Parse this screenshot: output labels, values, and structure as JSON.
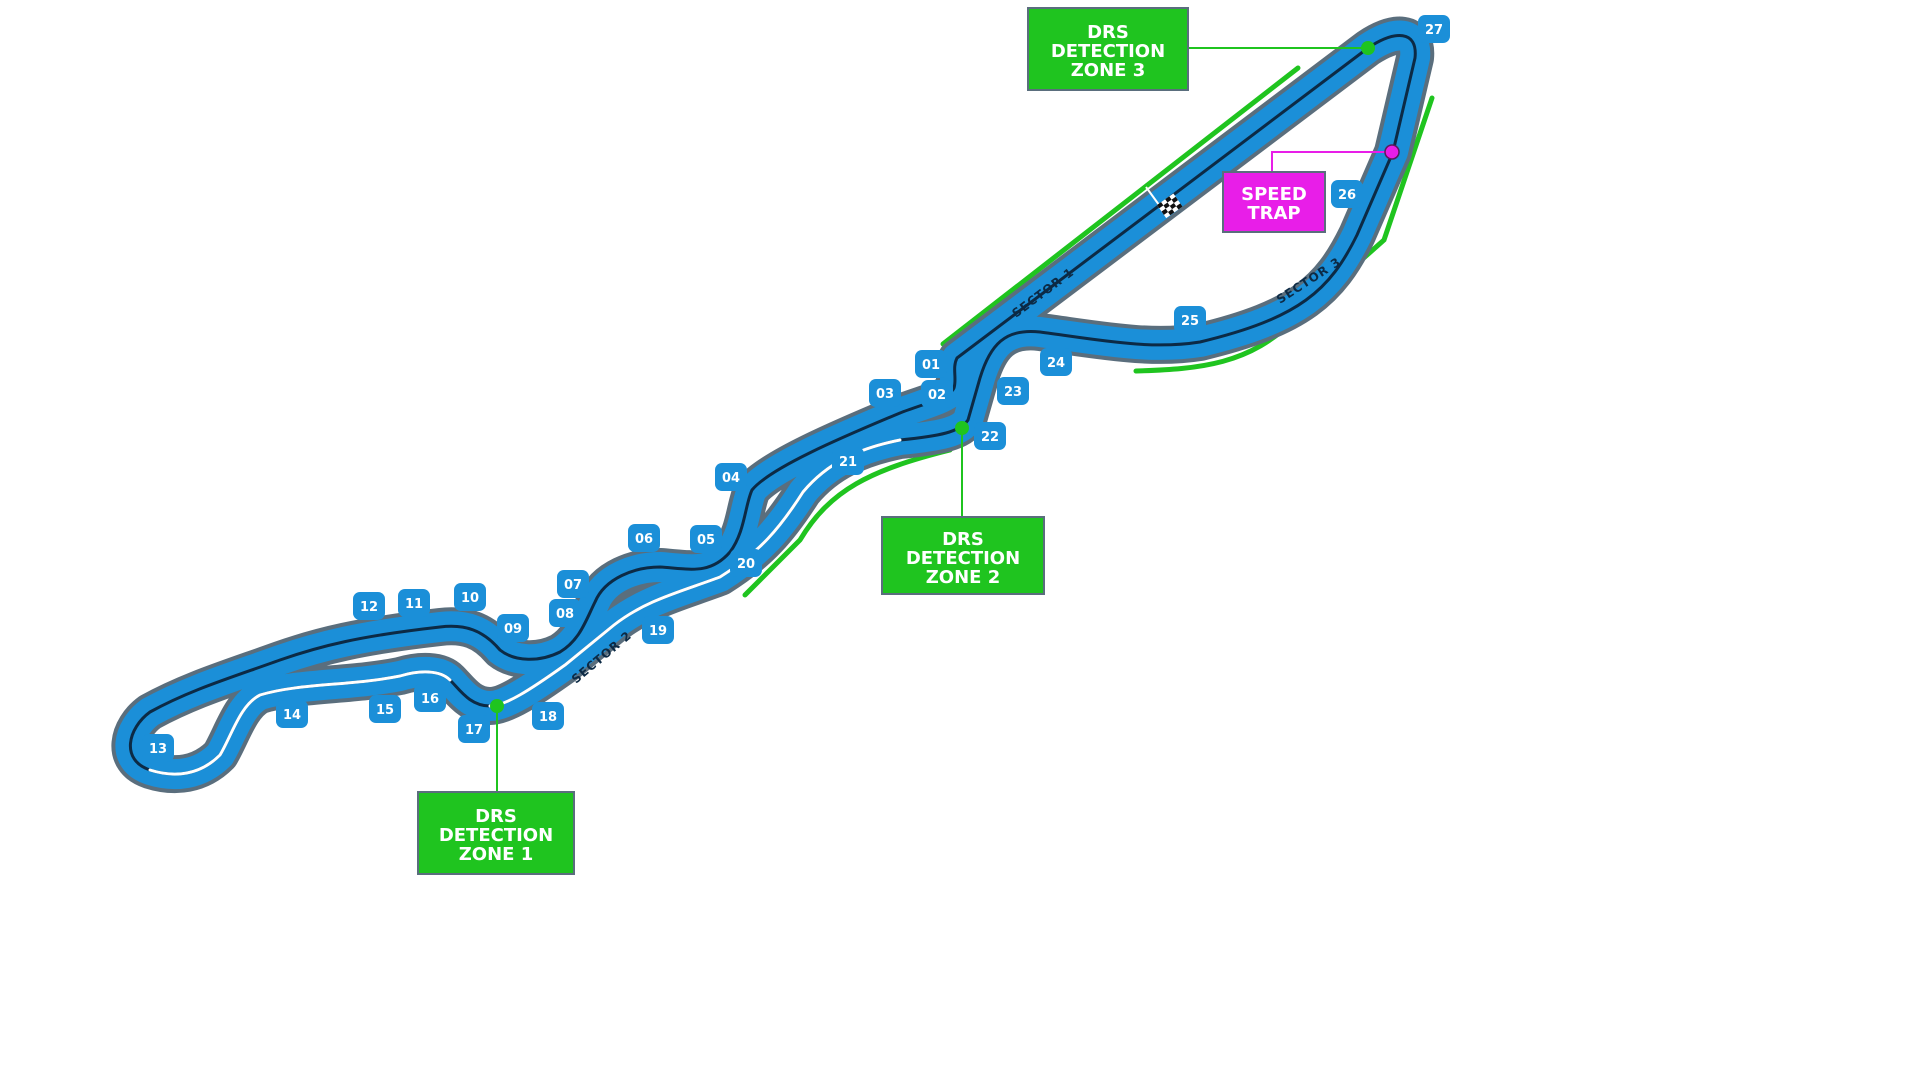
{
  "map": {
    "turns": [
      "01",
      "02",
      "03",
      "04",
      "05",
      "06",
      "07",
      "08",
      "09",
      "10",
      "11",
      "12",
      "13",
      "14",
      "15",
      "16",
      "17",
      "18",
      "19",
      "20",
      "21",
      "22",
      "23",
      "24",
      "25",
      "26",
      "27"
    ],
    "sectors": [
      "SECTOR 1",
      "SECTOR 2",
      "SECTOR 3"
    ],
    "callouts": {
      "drs1": [
        "DRS",
        "DETECTION",
        "ZONE 1"
      ],
      "drs2": [
        "DRS",
        "DETECTION",
        "ZONE 2"
      ],
      "drs3": [
        "DRS",
        "DETECTION",
        "ZONE 3"
      ],
      "speed_trap": [
        "SPEED",
        "TRAP"
      ]
    },
    "colors": {
      "track": "#1b8fd8",
      "track_outline": "#5a6e7d",
      "racing_line": "#0c2a45",
      "drs_line": "#ffffff",
      "drs_zone": "#1fc41f",
      "speed_trap": "#e81ee8",
      "turn_badge": "#1b8fd8"
    },
    "icons": {
      "start_finish": "checkered-flag-icon"
    }
  }
}
